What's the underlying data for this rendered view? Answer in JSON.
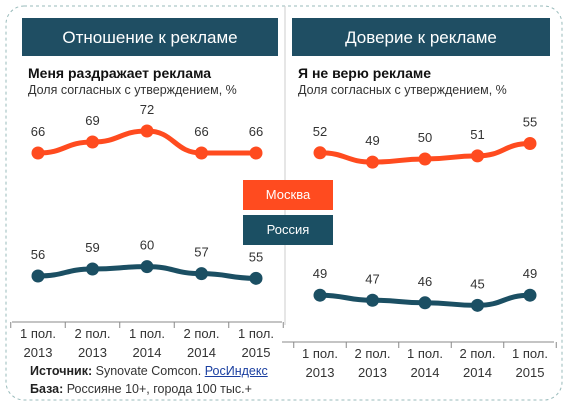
{
  "chart_data": [
    {
      "type": "line",
      "title": "Отношение к рекламе",
      "subtitle": "Меня раздражает реклама",
      "note": "Доля согласных с утверждением, %",
      "categories": [
        "1 пол. 2013",
        "2 пол. 2013",
        "1 пол. 2014",
        "2 пол. 2014",
        "1 пол. 2015"
      ],
      "series": [
        {
          "name": "Москва",
          "color": "#ff4b1f",
          "values": [
            66,
            69,
            72,
            66,
            66
          ],
          "ylim": [
            60,
            75
          ]
        },
        {
          "name": "Россия",
          "color": "#1b4f63",
          "values": [
            56,
            59,
            60,
            57,
            55
          ],
          "ylim": [
            50,
            65
          ]
        }
      ]
    },
    {
      "type": "line",
      "title": "Доверие к рекламе",
      "subtitle": "Я не верю рекламе",
      "note": "Доля согласных с утверждением, %",
      "categories": [
        "1 пол. 2013",
        "2 пол. 2013",
        "1 пол. 2014",
        "2 пол. 2014",
        "1 пол. 2015"
      ],
      "series": [
        {
          "name": "Москва",
          "color": "#ff4b1f",
          "values": [
            52,
            49,
            50,
            51,
            55
          ],
          "ylim": [
            40,
            60
          ]
        },
        {
          "name": "Россия",
          "color": "#1b4f63",
          "values": [
            49,
            47,
            46,
            45,
            49
          ],
          "ylim": [
            40,
            55
          ]
        }
      ]
    }
  ],
  "footer": {
    "source_label": "Источник:",
    "source": "Synovate Comcon.",
    "link": "РосИндекс",
    "base_label": "База:",
    "base": "Россияне 10+, города 100 тыс.+"
  }
}
